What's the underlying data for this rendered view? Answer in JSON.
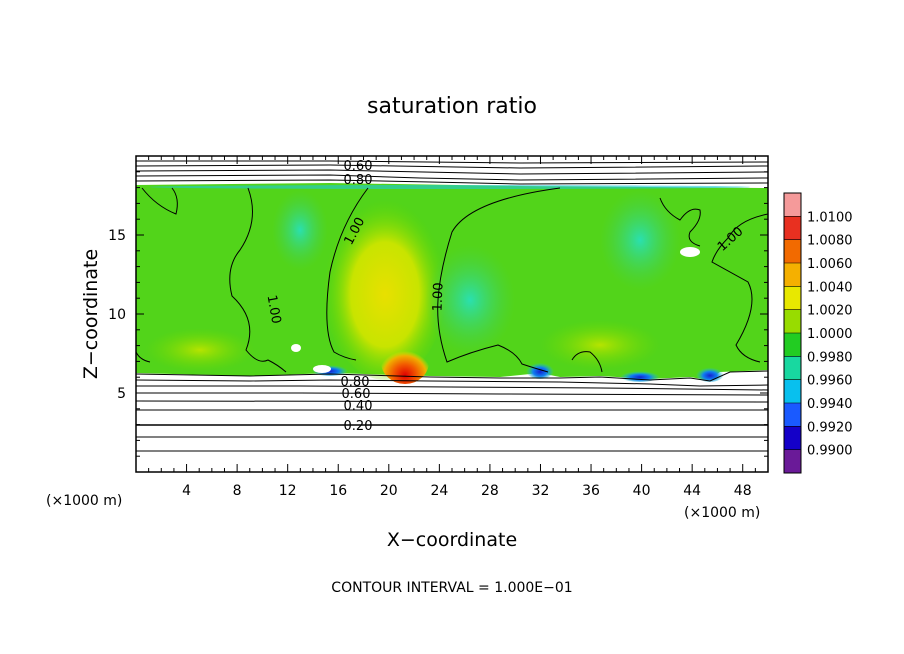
{
  "chart_data": {
    "type": "heatmap",
    "title": "saturation ratio",
    "xlabel": "X−coordinate",
    "ylabel": "Z−coordinate",
    "x_unit": "(×1000 m)",
    "z_unit": "(×1000 m)",
    "xlim": [
      0,
      50
    ],
    "ylim": [
      0,
      20
    ],
    "x_ticks": [
      "4",
      "8",
      "12",
      "16",
      "20",
      "24",
      "28",
      "32",
      "36",
      "40",
      "44",
      "48"
    ],
    "y_ticks": [
      "5",
      "10",
      "15"
    ],
    "colorbar": {
      "levels": [
        "1.0100",
        "1.0080",
        "1.0060",
        "1.0040",
        "1.0020",
        "1.0000",
        "0.9980",
        "0.9960",
        "0.9940",
        "0.9920",
        "0.9900"
      ],
      "colors": [
        "#f59a9a",
        "#e83020",
        "#f26a00",
        "#f5b000",
        "#e8e800",
        "#98dc00",
        "#22cc22",
        "#18d8a0",
        "#08c0ee",
        "#1a5aff",
        "#1400c8",
        "#6a1a98"
      ]
    },
    "contour_labels": [
      "0.60",
      "0.80",
      "1.00",
      "1.00",
      "1.00",
      "1.00",
      "0.80",
      "0.60",
      "0.40",
      "0.20"
    ],
    "footer": "CONTOUR INTERVAL = 1.000E−01"
  }
}
